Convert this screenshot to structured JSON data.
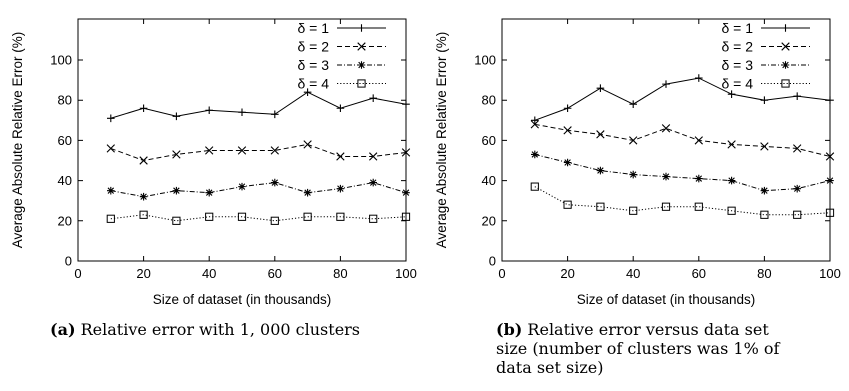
{
  "chart_data": [
    {
      "type": "line",
      "xlabel": "Size of dataset (in thousands)",
      "ylabel": "Average Absolute Relative Error (%)",
      "xlim": [
        0,
        100
      ],
      "ylim": [
        0,
        100
      ],
      "xticks": [
        "0",
        "20",
        "40",
        "60",
        "80",
        "100"
      ],
      "yticks": [
        "0",
        "20",
        "40",
        "60",
        "80",
        "100"
      ],
      "legend": "top-right",
      "grid": false,
      "x": [
        10,
        20,
        30,
        40,
        50,
        60,
        70,
        80,
        90,
        100
      ],
      "series": [
        {
          "name": "δ = 1",
          "marker": "plus",
          "dash": "solid",
          "values": [
            71,
            76,
            72,
            75,
            74,
            73,
            84,
            76,
            81,
            78
          ]
        },
        {
          "name": "δ = 2",
          "marker": "cross",
          "dash": "dashed",
          "values": [
            56,
            50,
            53,
            55,
            55,
            55,
            58,
            52,
            52,
            54
          ]
        },
        {
          "name": "δ = 3",
          "marker": "star",
          "dash": "dashdot",
          "values": [
            35,
            32,
            35,
            34,
            37,
            39,
            34,
            36,
            39,
            34
          ]
        },
        {
          "name": "δ = 4",
          "marker": "square",
          "dash": "dotted",
          "values": [
            21,
            23,
            20,
            22,
            22,
            20,
            22,
            22,
            21,
            22
          ]
        }
      ],
      "caption": {
        "tag": "(a)",
        "text": "Relative error with 1, 000 clusters"
      }
    },
    {
      "type": "line",
      "xlabel": "Size of dataset (in thousands)",
      "ylabel": "Average Absolute Relative Error (%)",
      "xlim": [
        0,
        100
      ],
      "ylim": [
        0,
        100
      ],
      "xticks": [
        "0",
        "20",
        "40",
        "60",
        "80",
        "100"
      ],
      "yticks": [
        "0",
        "20",
        "40",
        "60",
        "80",
        "100"
      ],
      "legend": "top-right",
      "grid": false,
      "x": [
        10,
        20,
        30,
        40,
        50,
        60,
        70,
        80,
        90,
        100
      ],
      "series": [
        {
          "name": "δ = 1",
          "marker": "plus",
          "dash": "solid",
          "values": [
            70,
            76,
            86,
            78,
            88,
            91,
            83,
            80,
            82,
            80
          ]
        },
        {
          "name": "δ = 2",
          "marker": "cross",
          "dash": "dashed",
          "values": [
            68,
            65,
            63,
            60,
            66,
            60,
            58,
            57,
            56,
            52
          ]
        },
        {
          "name": "δ = 3",
          "marker": "star",
          "dash": "dashdot",
          "values": [
            53,
            49,
            45,
            43,
            42,
            41,
            40,
            35,
            36,
            40
          ]
        },
        {
          "name": "δ = 4",
          "marker": "square",
          "dash": "dotted",
          "values": [
            37,
            28,
            27,
            25,
            27,
            27,
            25,
            23,
            23,
            24
          ]
        }
      ],
      "caption": {
        "tag": "(b)",
        "text": "Relative error versus data set size (number of clusters was 1% of data set size)"
      }
    }
  ]
}
